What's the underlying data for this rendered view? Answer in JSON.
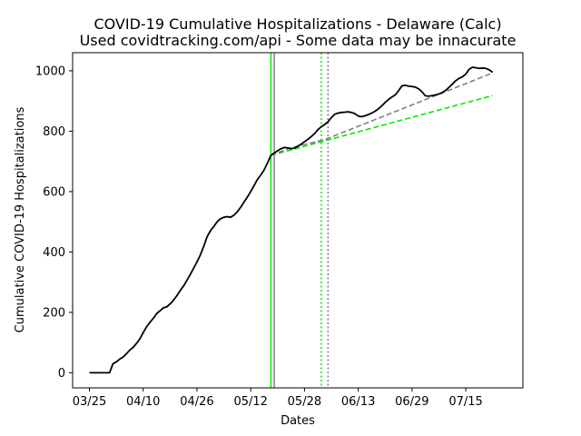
{
  "chart_data": {
    "type": "line",
    "title": "COVID-19 Cumulative Hospitalizations - Delaware (Calc)",
    "subtitle": "Used covidtracking.com/api - Some data may be innacurate",
    "xlabel": "Dates",
    "ylabel": "Cumulative COVID-19 Hospitalizations",
    "x_tick_labels": [
      "03/25",
      "04/10",
      "04/26",
      "05/12",
      "05/28",
      "06/13",
      "06/29",
      "07/15"
    ],
    "x_tick_dates": [
      "2020-03-25",
      "2020-04-10",
      "2020-04-26",
      "2020-05-12",
      "2020-05-28",
      "2020-06-13",
      "2020-06-29",
      "2020-07-15"
    ],
    "y_ticks": [
      0,
      200,
      400,
      600,
      800,
      1000
    ],
    "xlim": [
      "2020-03-20",
      "2020-08-01"
    ],
    "ylim": [
      -50,
      1060
    ],
    "grid": false,
    "series": [
      {
        "color": "#000000",
        "style": "solid",
        "points": [
          [
            "2020-03-25",
            0
          ],
          [
            "2020-03-26",
            0
          ],
          [
            "2020-03-27",
            0
          ],
          [
            "2020-03-28",
            0
          ],
          [
            "2020-03-29",
            0
          ],
          [
            "2020-03-30",
            0
          ],
          [
            "2020-03-31",
            0
          ],
          [
            "2020-04-01",
            30
          ],
          [
            "2020-04-02",
            36
          ],
          [
            "2020-04-03",
            45
          ],
          [
            "2020-04-04",
            52
          ],
          [
            "2020-04-05",
            63
          ],
          [
            "2020-04-06",
            75
          ],
          [
            "2020-04-07",
            84
          ],
          [
            "2020-04-08",
            97
          ],
          [
            "2020-04-09",
            112
          ],
          [
            "2020-04-10",
            133
          ],
          [
            "2020-04-11",
            152
          ],
          [
            "2020-04-12",
            167
          ],
          [
            "2020-04-13",
            180
          ],
          [
            "2020-04-14",
            196
          ],
          [
            "2020-04-15",
            205
          ],
          [
            "2020-04-16",
            215
          ],
          [
            "2020-04-17",
            218
          ],
          [
            "2020-04-18",
            228
          ],
          [
            "2020-04-19",
            240
          ],
          [
            "2020-04-20",
            255
          ],
          [
            "2020-04-21",
            272
          ],
          [
            "2020-04-22",
            287
          ],
          [
            "2020-04-23",
            306
          ],
          [
            "2020-04-24",
            325
          ],
          [
            "2020-04-25",
            346
          ],
          [
            "2020-04-26",
            367
          ],
          [
            "2020-04-27",
            390
          ],
          [
            "2020-04-28",
            418
          ],
          [
            "2020-04-29",
            450
          ],
          [
            "2020-04-30",
            470
          ],
          [
            "2020-05-01",
            484
          ],
          [
            "2020-05-02",
            500
          ],
          [
            "2020-05-03",
            510
          ],
          [
            "2020-05-04",
            515
          ],
          [
            "2020-05-05",
            517
          ],
          [
            "2020-05-06",
            515
          ],
          [
            "2020-05-07",
            522
          ],
          [
            "2020-05-08",
            533
          ],
          [
            "2020-05-09",
            548
          ],
          [
            "2020-05-10",
            565
          ],
          [
            "2020-05-11",
            582
          ],
          [
            "2020-05-12",
            600
          ],
          [
            "2020-05-13",
            620
          ],
          [
            "2020-05-14",
            640
          ],
          [
            "2020-05-15",
            655
          ],
          [
            "2020-05-16",
            672
          ],
          [
            "2020-05-17",
            695
          ],
          [
            "2020-05-18",
            720
          ],
          [
            "2020-05-19",
            728
          ],
          [
            "2020-05-20",
            735
          ],
          [
            "2020-05-21",
            742
          ],
          [
            "2020-05-22",
            746
          ],
          [
            "2020-05-23",
            745
          ],
          [
            "2020-05-24",
            742
          ],
          [
            "2020-05-25",
            744
          ],
          [
            "2020-05-26",
            750
          ],
          [
            "2020-05-27",
            757
          ],
          [
            "2020-05-28",
            765
          ],
          [
            "2020-05-29",
            773
          ],
          [
            "2020-05-30",
            782
          ],
          [
            "2020-05-31",
            792
          ],
          [
            "2020-06-01",
            805
          ],
          [
            "2020-06-02",
            815
          ],
          [
            "2020-06-03",
            822
          ],
          [
            "2020-06-04",
            831
          ],
          [
            "2020-06-05",
            845
          ],
          [
            "2020-06-06",
            856
          ],
          [
            "2020-06-07",
            860
          ],
          [
            "2020-06-08",
            862
          ],
          [
            "2020-06-09",
            863
          ],
          [
            "2020-06-10",
            864
          ],
          [
            "2020-06-11",
            862
          ],
          [
            "2020-06-12",
            858
          ],
          [
            "2020-06-13",
            850
          ],
          [
            "2020-06-14",
            848
          ],
          [
            "2020-06-15",
            851
          ],
          [
            "2020-06-16",
            855
          ],
          [
            "2020-06-17",
            860
          ],
          [
            "2020-06-18",
            866
          ],
          [
            "2020-06-19",
            874
          ],
          [
            "2020-06-20",
            884
          ],
          [
            "2020-06-21",
            895
          ],
          [
            "2020-06-22",
            905
          ],
          [
            "2020-06-23",
            913
          ],
          [
            "2020-06-24",
            920
          ],
          [
            "2020-06-25",
            934
          ],
          [
            "2020-06-26",
            950
          ],
          [
            "2020-06-27",
            952
          ],
          [
            "2020-06-28",
            949
          ],
          [
            "2020-06-29",
            948
          ],
          [
            "2020-06-30",
            946
          ],
          [
            "2020-07-01",
            940
          ],
          [
            "2020-07-02",
            930
          ],
          [
            "2020-07-03",
            917
          ],
          [
            "2020-07-04",
            916
          ],
          [
            "2020-07-05",
            918
          ],
          [
            "2020-07-06",
            920
          ],
          [
            "2020-07-07",
            923
          ],
          [
            "2020-07-08",
            928
          ],
          [
            "2020-07-09",
            935
          ],
          [
            "2020-07-10",
            945
          ],
          [
            "2020-07-11",
            956
          ],
          [
            "2020-07-12",
            967
          ],
          [
            "2020-07-13",
            975
          ],
          [
            "2020-07-14",
            980
          ],
          [
            "2020-07-15",
            989
          ],
          [
            "2020-07-16",
            1005
          ],
          [
            "2020-07-17",
            1012
          ],
          [
            "2020-07-18",
            1010
          ],
          [
            "2020-07-19",
            1008
          ],
          [
            "2020-07-20",
            1009
          ],
          [
            "2020-07-21",
            1008
          ],
          [
            "2020-07-22",
            1003
          ],
          [
            "2020-07-23",
            995
          ]
        ]
      },
      {
        "color": "#808080",
        "style": "dashed",
        "points": [
          [
            "2020-05-18",
            720
          ],
          [
            "2020-05-24",
            745
          ],
          [
            "2020-06-03",
            772
          ],
          [
            "2020-07-23",
            993
          ]
        ]
      },
      {
        "color": "#00ee00",
        "style": "dashed",
        "points": [
          [
            "2020-05-18",
            720
          ],
          [
            "2020-07-23",
            918
          ]
        ]
      }
    ],
    "vertical_lines": [
      {
        "date": "2020-05-18",
        "color": "#00ee00",
        "style": "solid"
      },
      {
        "date": "2020-05-19",
        "color": "#808080",
        "style": "solid"
      },
      {
        "date": "2020-06-02",
        "color": "#00ee00",
        "style": "dotted"
      },
      {
        "date": "2020-06-04",
        "color": "#808080",
        "style": "dotted"
      }
    ]
  }
}
